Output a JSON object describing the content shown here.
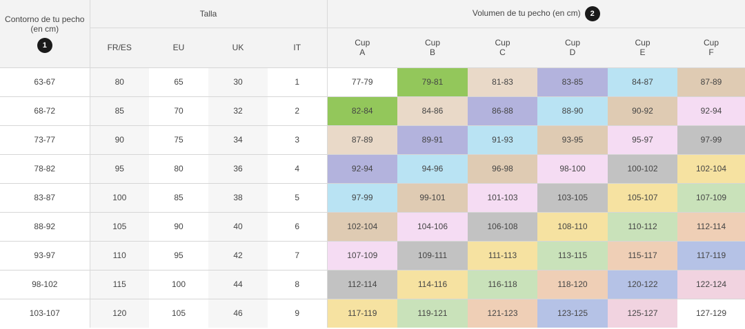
{
  "header": {
    "contorno_label": "Contorno de tu pecho (en cm)",
    "contorno_badge": "1",
    "talla_label": "Talla",
    "volumen_label": "Volumen de tu pecho (en cm)",
    "volumen_badge": "2",
    "size_columns": [
      "FR/ES",
      "EU",
      "UK",
      "IT"
    ],
    "cup_word": "Cup",
    "cup_letters": [
      "A",
      "B",
      "C",
      "D",
      "E",
      "F"
    ]
  },
  "colors": {
    "white": "#ffffff",
    "green": "#93c75b",
    "beige": "#e9d9c8",
    "lavender": "#b3b3dd",
    "lightblue": "#b9e3f3",
    "tan": "#dfcbb3",
    "pink": "#f5dcf3",
    "gray": "#c2c2c2",
    "yellow": "#f6e2a1",
    "mint": "#c9e2ba",
    "peach": "#efcfb6",
    "blue": "#b5c2e6",
    "rose": "#f1d3e0"
  },
  "rows": [
    {
      "contorno": "63-67",
      "sizes": [
        "80",
        "65",
        "30",
        "1"
      ],
      "cups": [
        {
          "v": "77-79",
          "c": "white"
        },
        {
          "v": "79-81",
          "c": "green"
        },
        {
          "v": "81-83",
          "c": "beige"
        },
        {
          "v": "83-85",
          "c": "lavender"
        },
        {
          "v": "84-87",
          "c": "lightblue"
        },
        {
          "v": "87-89",
          "c": "tan"
        }
      ]
    },
    {
      "contorno": "68-72",
      "sizes": [
        "85",
        "70",
        "32",
        "2"
      ],
      "cups": [
        {
          "v": "82-84",
          "c": "green"
        },
        {
          "v": "84-86",
          "c": "beige"
        },
        {
          "v": "86-88",
          "c": "lavender"
        },
        {
          "v": "88-90",
          "c": "lightblue"
        },
        {
          "v": "90-92",
          "c": "tan"
        },
        {
          "v": "92-94",
          "c": "pink"
        }
      ]
    },
    {
      "contorno": "73-77",
      "sizes": [
        "90",
        "75",
        "34",
        "3"
      ],
      "cups": [
        {
          "v": "87-89",
          "c": "beige"
        },
        {
          "v": "89-91",
          "c": "lavender"
        },
        {
          "v": "91-93",
          "c": "lightblue"
        },
        {
          "v": "93-95",
          "c": "tan"
        },
        {
          "v": "95-97",
          "c": "pink"
        },
        {
          "v": "97-99",
          "c": "gray"
        }
      ]
    },
    {
      "contorno": "78-82",
      "sizes": [
        "95",
        "80",
        "36",
        "4"
      ],
      "cups": [
        {
          "v": "92-94",
          "c": "lavender"
        },
        {
          "v": "94-96",
          "c": "lightblue"
        },
        {
          "v": "96-98",
          "c": "tan"
        },
        {
          "v": "98-100",
          "c": "pink"
        },
        {
          "v": "100-102",
          "c": "gray"
        },
        {
          "v": "102-104",
          "c": "yellow"
        }
      ]
    },
    {
      "contorno": "83-87",
      "sizes": [
        "100",
        "85",
        "38",
        "5"
      ],
      "cups": [
        {
          "v": "97-99",
          "c": "lightblue"
        },
        {
          "v": "99-101",
          "c": "tan"
        },
        {
          "v": "101-103",
          "c": "pink"
        },
        {
          "v": "103-105",
          "c": "gray"
        },
        {
          "v": "105-107",
          "c": "yellow"
        },
        {
          "v": "107-109",
          "c": "mint"
        }
      ]
    },
    {
      "contorno": "88-92",
      "sizes": [
        "105",
        "90",
        "40",
        "6"
      ],
      "cups": [
        {
          "v": "102-104",
          "c": "tan"
        },
        {
          "v": "104-106",
          "c": "pink"
        },
        {
          "v": "106-108",
          "c": "gray"
        },
        {
          "v": "108-110",
          "c": "yellow"
        },
        {
          "v": "110-112",
          "c": "mint"
        },
        {
          "v": "112-114",
          "c": "peach"
        }
      ]
    },
    {
      "contorno": "93-97",
      "sizes": [
        "110",
        "95",
        "42",
        "7"
      ],
      "cups": [
        {
          "v": "107-109",
          "c": "pink"
        },
        {
          "v": "109-111",
          "c": "gray"
        },
        {
          "v": "111-113",
          "c": "yellow"
        },
        {
          "v": "113-115",
          "c": "mint"
        },
        {
          "v": "115-117",
          "c": "peach"
        },
        {
          "v": "117-119",
          "c": "blue"
        }
      ]
    },
    {
      "contorno": "98-102",
      "sizes": [
        "115",
        "100",
        "44",
        "8"
      ],
      "cups": [
        {
          "v": "112-114",
          "c": "gray"
        },
        {
          "v": "114-116",
          "c": "yellow"
        },
        {
          "v": "116-118",
          "c": "mint"
        },
        {
          "v": "118-120",
          "c": "peach"
        },
        {
          "v": "120-122",
          "c": "blue"
        },
        {
          "v": "122-124",
          "c": "rose"
        }
      ]
    },
    {
      "contorno": "103-107",
      "sizes": [
        "120",
        "105",
        "46",
        "9"
      ],
      "cups": [
        {
          "v": "117-119",
          "c": "yellow"
        },
        {
          "v": "119-121",
          "c": "mint"
        },
        {
          "v": "121-123",
          "c": "peach"
        },
        {
          "v": "123-125",
          "c": "blue"
        },
        {
          "v": "125-127",
          "c": "rose"
        },
        {
          "v": "127-129",
          "c": "white"
        }
      ]
    }
  ]
}
